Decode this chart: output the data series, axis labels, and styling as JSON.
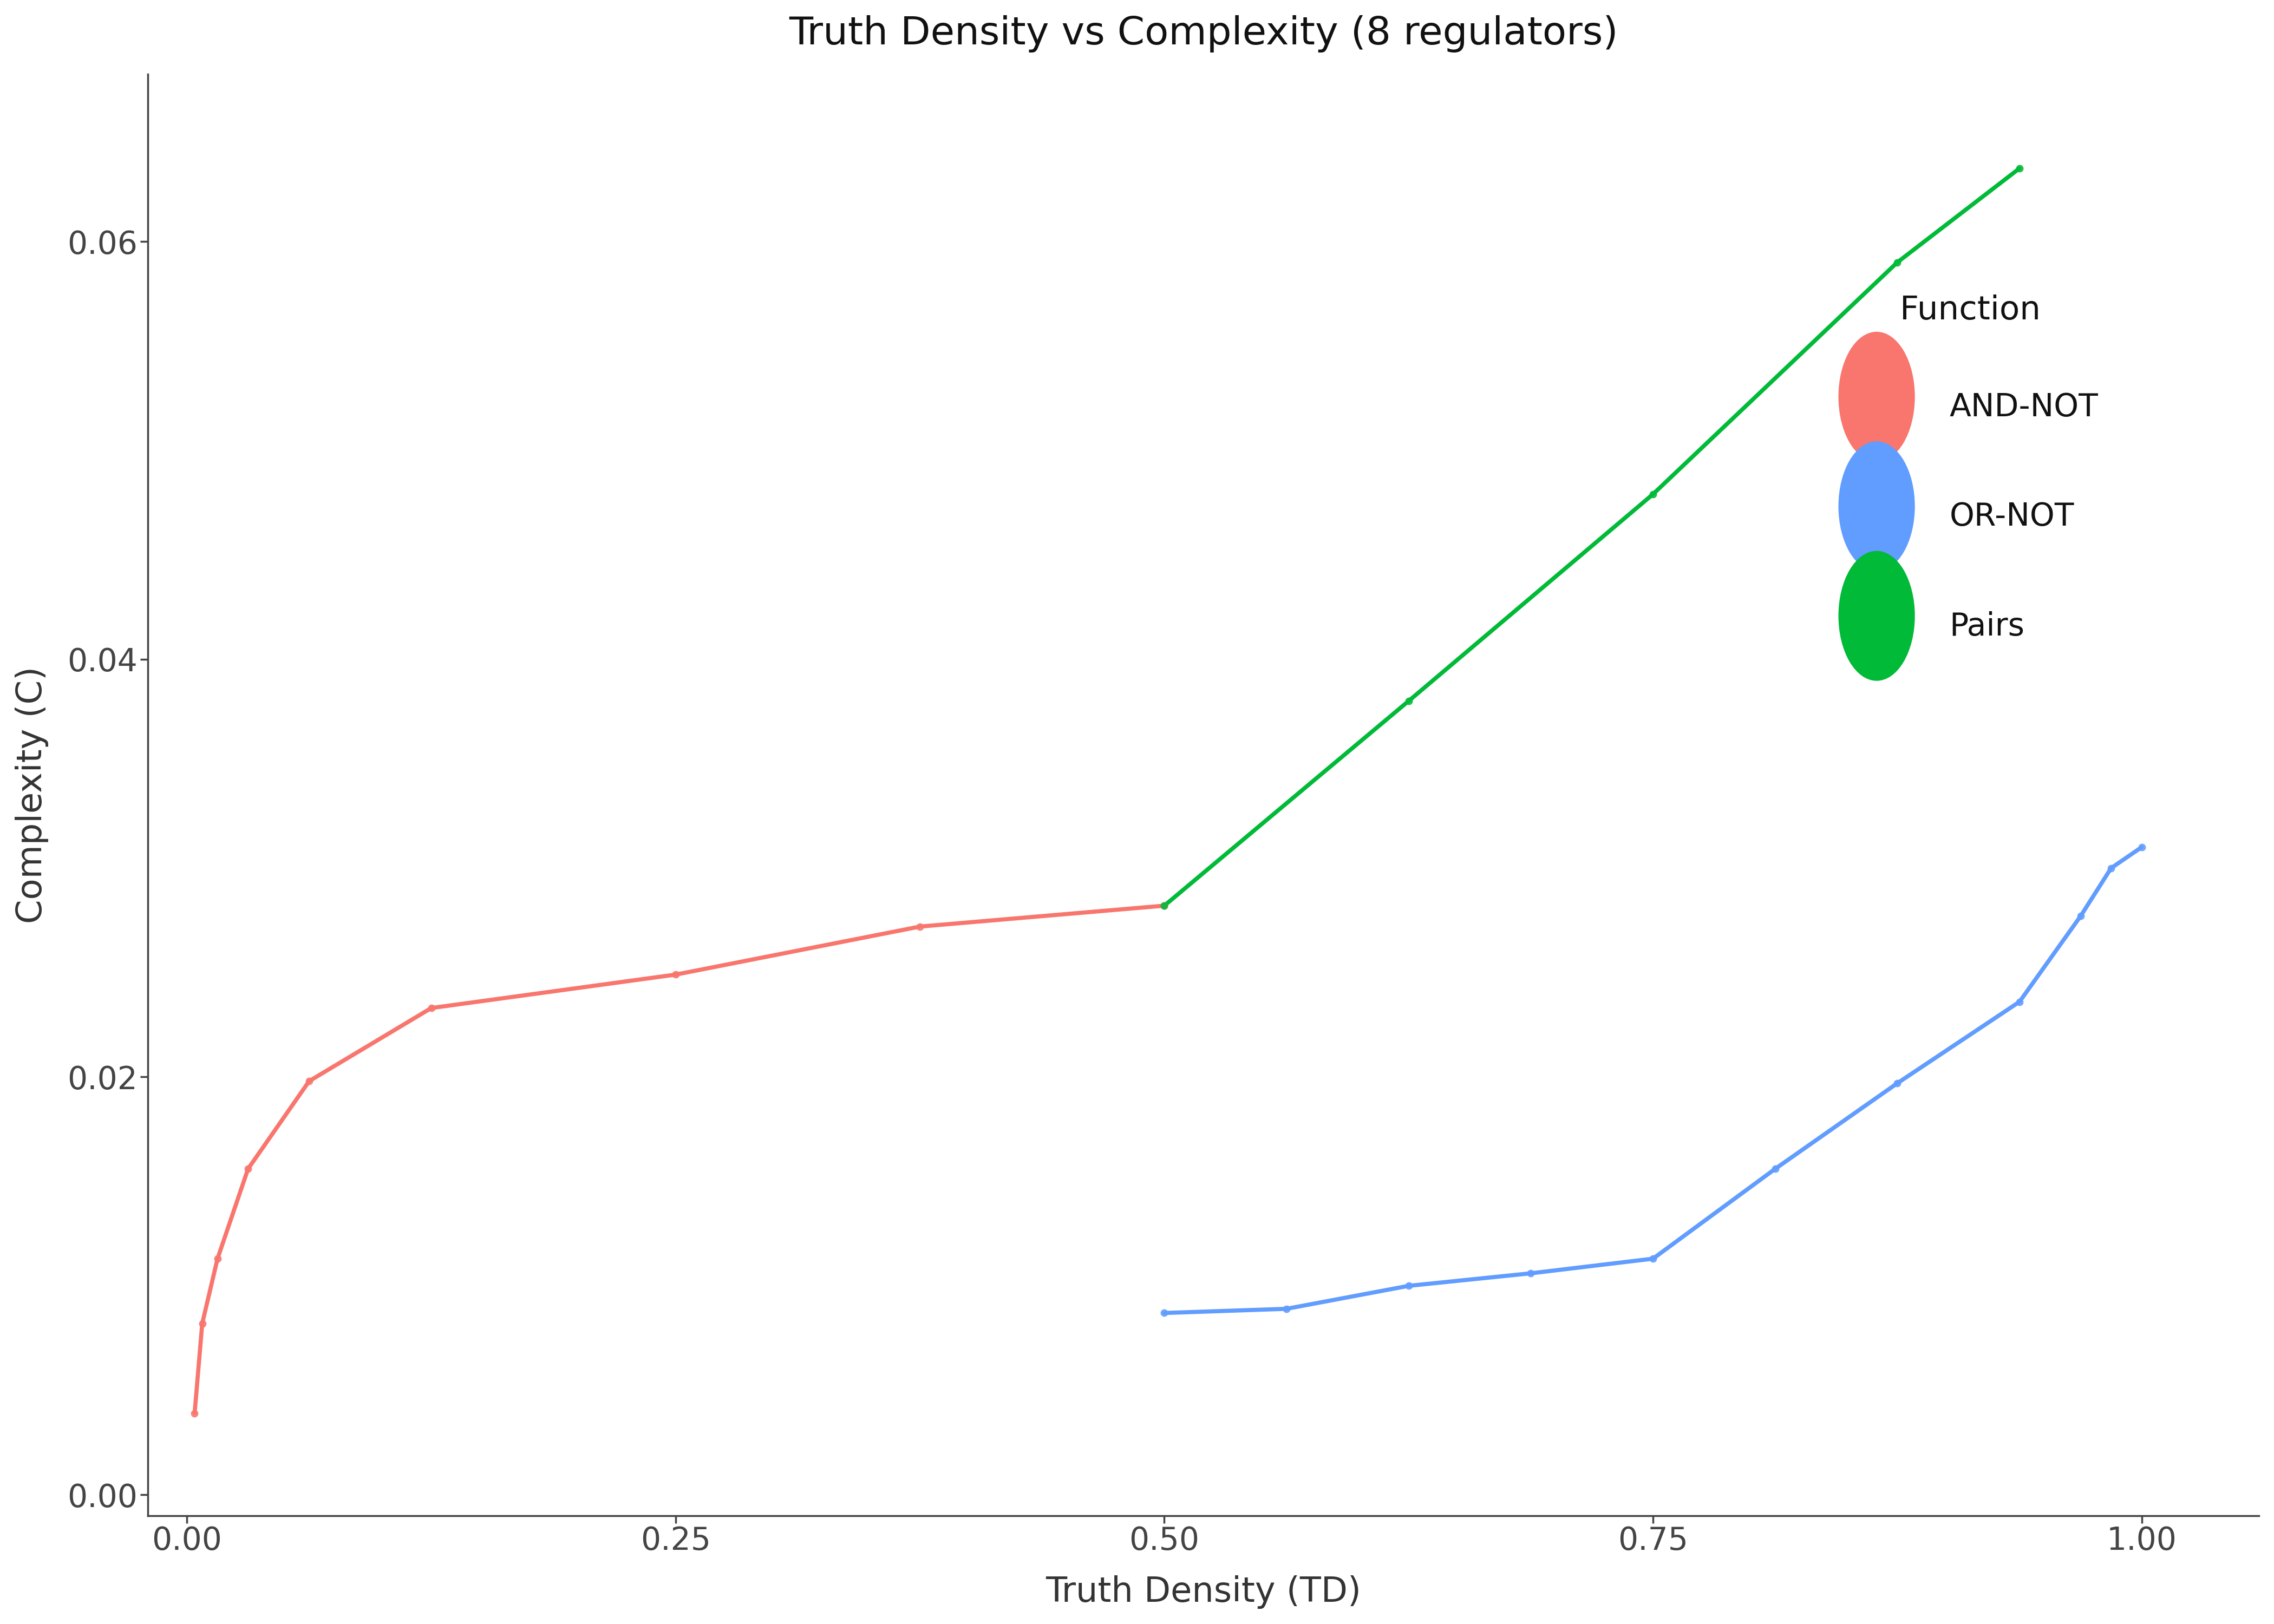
{
  "title": "Truth Density vs Complexity (8 regulators)",
  "xlabel": "Truth Density (TD)",
  "ylabel": "Complexity (C)",
  "background_color": "#ffffff",
  "and_not": {
    "color": "#F8766D",
    "td": [
      0.00390625,
      0.0078125,
      0.015625,
      0.03125,
      0.0625,
      0.125,
      0.25,
      0.375,
      0.5
    ],
    "c": [
      0.0039,
      0.0082,
      0.0113,
      0.0156,
      0.0198,
      0.0233,
      0.0249,
      0.0272,
      0.0282
    ]
  },
  "or_not": {
    "color": "#619CFF",
    "td": [
      0.5,
      0.5625,
      0.625,
      0.6875,
      0.75,
      0.8125,
      0.875,
      0.9375,
      0.96875,
      0.984375,
      1.0
    ],
    "c": [
      0.0087,
      0.0089,
      0.01,
      0.0106,
      0.0113,
      0.0156,
      0.0197,
      0.0236,
      0.0277,
      0.03,
      0.031
    ]
  },
  "pairs": {
    "color": "#00BA38",
    "td": [
      0.5,
      0.625,
      0.75,
      0.875,
      0.9375
    ],
    "c": [
      0.0282,
      0.038,
      0.0479,
      0.059,
      0.0635
    ]
  },
  "xlim": [
    -0.02,
    1.06
  ],
  "ylim": [
    -0.001,
    0.068
  ],
  "xticks": [
    0.0,
    0.25,
    0.5,
    0.75,
    1.0
  ],
  "yticks": [
    0.0,
    0.02,
    0.04,
    0.06
  ],
  "title_fontsize": 52,
  "axis_label_fontsize": 46,
  "tick_fontsize": 42,
  "legend_title_fontsize": 44,
  "legend_fontsize": 42,
  "line_width": 5.5,
  "marker_size": 9
}
